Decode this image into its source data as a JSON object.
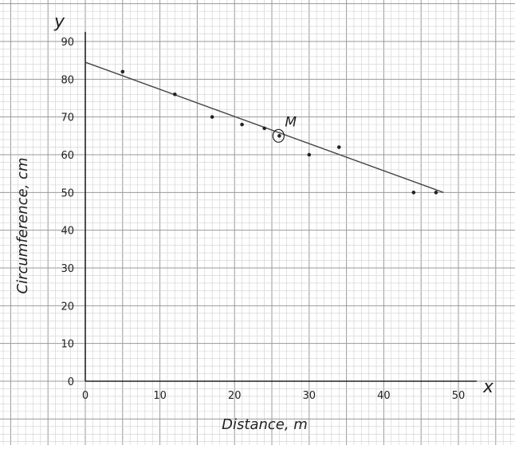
{
  "chart_data": {
    "type": "scatter",
    "xlabel": "Distance, m",
    "ylabel": "Circumference, cm",
    "x_axis_letter": "x",
    "y_axis_letter": "y",
    "xlim": [
      0,
      50
    ],
    "ylim": [
      0,
      90
    ],
    "x_ticks": [
      0,
      10,
      20,
      30,
      40,
      50
    ],
    "y_ticks": [
      0,
      10,
      20,
      30,
      40,
      50,
      60,
      70,
      80,
      90
    ],
    "points": [
      {
        "x": 5,
        "y": 82
      },
      {
        "x": 12,
        "y": 76
      },
      {
        "x": 17,
        "y": 70
      },
      {
        "x": 21,
        "y": 68
      },
      {
        "x": 24,
        "y": 67
      },
      {
        "x": 26,
        "y": 65
      },
      {
        "x": 30,
        "y": 60
      },
      {
        "x": 34,
        "y": 62
      },
      {
        "x": 44,
        "y": 50
      },
      {
        "x": 47,
        "y": 50
      }
    ],
    "trend_line": {
      "x_start": 0,
      "y_start": 84.5,
      "x_end": 48,
      "y_end": 50
    },
    "marked_point": {
      "label": "M",
      "x": 26,
      "y": 65
    },
    "grid": true,
    "colors": {
      "grid_minor": "#cfcfcf",
      "grid_major": "#9a9a9a",
      "axis": "#222222",
      "line": "#444444",
      "points": "#222222"
    }
  }
}
